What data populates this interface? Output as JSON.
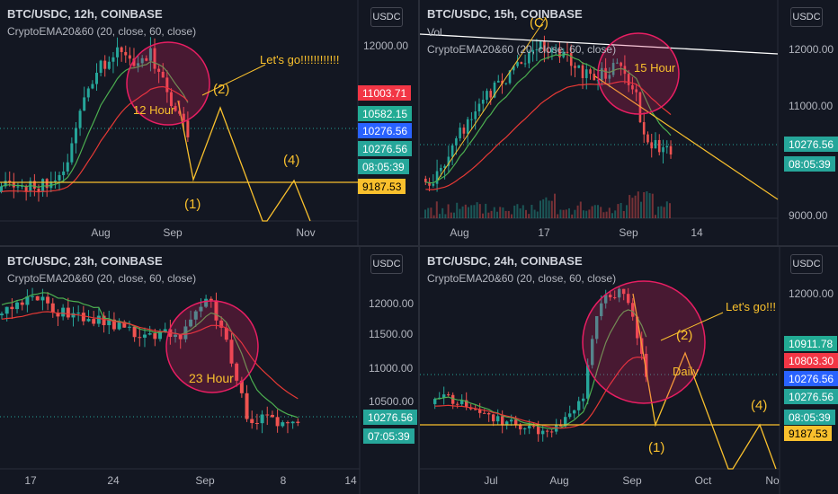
{
  "panels": [
    {
      "symbol": "BTC/USDC, 12h, COINBASE",
      "indicator": "CryptoEMA20&60 (20, close, 60, close)",
      "currency_button": "USDC",
      "y_ticks": [
        "12000.00"
      ],
      "x_ticks": [
        "Aug",
        "Sep",
        "Nov"
      ],
      "price_tags": [
        {
          "text": "11003.71",
          "color": "#f23645",
          "fg": "#ffffff"
        },
        {
          "text": "10582.15",
          "color": "#22ab94",
          "fg": "#ffffff"
        },
        {
          "text": "10276.56",
          "color": "#2962ff",
          "fg": "#ffffff"
        },
        {
          "text": "10276.56",
          "color": "#26a69a",
          "fg": "#ffffff"
        },
        {
          "text": "08:05:39",
          "color": "#26a69a",
          "fg": "#ffffff"
        },
        {
          "text": "9187.53",
          "color": "#f9c02d",
          "fg": "#000000"
        }
      ],
      "annotations": [
        "Let's go!!!!!!!!!!!!",
        "(2)",
        "12 Hour",
        "(4)",
        "(1)"
      ]
    },
    {
      "symbol": "BTC/USDC, 15h, COINBASE",
      "volume_label": "Vol",
      "indicator": "CryptoEMA20&60 (20, close, 60, close)",
      "currency_button": "USDC",
      "y_ticks": [
        "12000.00",
        "11000.00",
        "10000.00",
        "9000.00"
      ],
      "x_ticks": [
        "Aug",
        "17",
        "Sep",
        "14"
      ],
      "price_tags": [
        {
          "text": "10276.56",
          "color": "#26a69a",
          "fg": "#ffffff"
        },
        {
          "text": "08:05:39",
          "color": "#26a69a",
          "fg": "#ffffff"
        }
      ],
      "annotations": [
        "(C)",
        "15 Hour"
      ]
    },
    {
      "symbol": "BTC/USDC, 23h, COINBASE",
      "indicator": "CryptoEMA20&60 (20, close, 60, close)",
      "currency_button": "USDC",
      "y_ticks": [
        "12000.00",
        "11500.00",
        "11000.00",
        "10500.00"
      ],
      "x_ticks": [
        "17",
        "24",
        "Sep",
        "8",
        "14"
      ],
      "price_tags": [
        {
          "text": "10276.56",
          "color": "#26a69a",
          "fg": "#ffffff"
        },
        {
          "text": "07:05:39",
          "color": "#26a69a",
          "fg": "#ffffff"
        }
      ],
      "annotations": [
        "23 Hour"
      ]
    },
    {
      "symbol": "BTC/USDC, 24h, COINBASE",
      "indicator": "CryptoEMA20&60 (20, close, 60, close)",
      "currency_button": "USDC",
      "y_ticks": [
        "12000.00"
      ],
      "x_ticks": [
        "Jul",
        "Aug",
        "Sep",
        "Oct",
        "No"
      ],
      "price_tags": [
        {
          "text": "10911.78",
          "color": "#22ab94",
          "fg": "#ffffff"
        },
        {
          "text": "10803.30",
          "color": "#f23645",
          "fg": "#ffffff"
        },
        {
          "text": "10276.56",
          "color": "#2962ff",
          "fg": "#ffffff"
        },
        {
          "text": "10276.56",
          "color": "#26a69a",
          "fg": "#ffffff"
        },
        {
          "text": "08:05:39",
          "color": "#26a69a",
          "fg": "#ffffff"
        },
        {
          "text": "9187.53",
          "color": "#f9c02d",
          "fg": "#000000"
        }
      ],
      "annotations": [
        "Let's go!!!",
        "(2)",
        "Daily",
        "(4)",
        "(1)"
      ]
    }
  ],
  "chart_data": [
    {
      "type": "candlestick",
      "title": "BTC/USDC, 12h, COINBASE",
      "last_price": 10276.56,
      "ema20": 10582.15,
      "ema60": 11003.71,
      "support_level": 9187.53,
      "series": [
        {
          "name": "CryptoEMA20&60"
        }
      ]
    },
    {
      "type": "candlestick",
      "title": "BTC/USDC, 15h, COINBASE",
      "last_price": 10276.56,
      "ylim": [
        9000,
        12500
      ]
    },
    {
      "type": "candlestick",
      "title": "BTC/USDC, 23h, COINBASE",
      "last_price": 10276.56,
      "ylim": [
        10300,
        12300
      ]
    },
    {
      "type": "candlestick",
      "title": "BTC/USDC, 24h, COINBASE",
      "last_price": 10276.56,
      "ema20": 10911.78,
      "ema60": 10803.3,
      "support_level": 9187.53
    }
  ],
  "colors": {
    "bull": "#26a69a",
    "bear": "#ef5350",
    "ema20": "#4caf50",
    "ema60": "#e53935",
    "annot": "#f9c02d",
    "circle": "#e91e63",
    "bg": "#131722"
  }
}
